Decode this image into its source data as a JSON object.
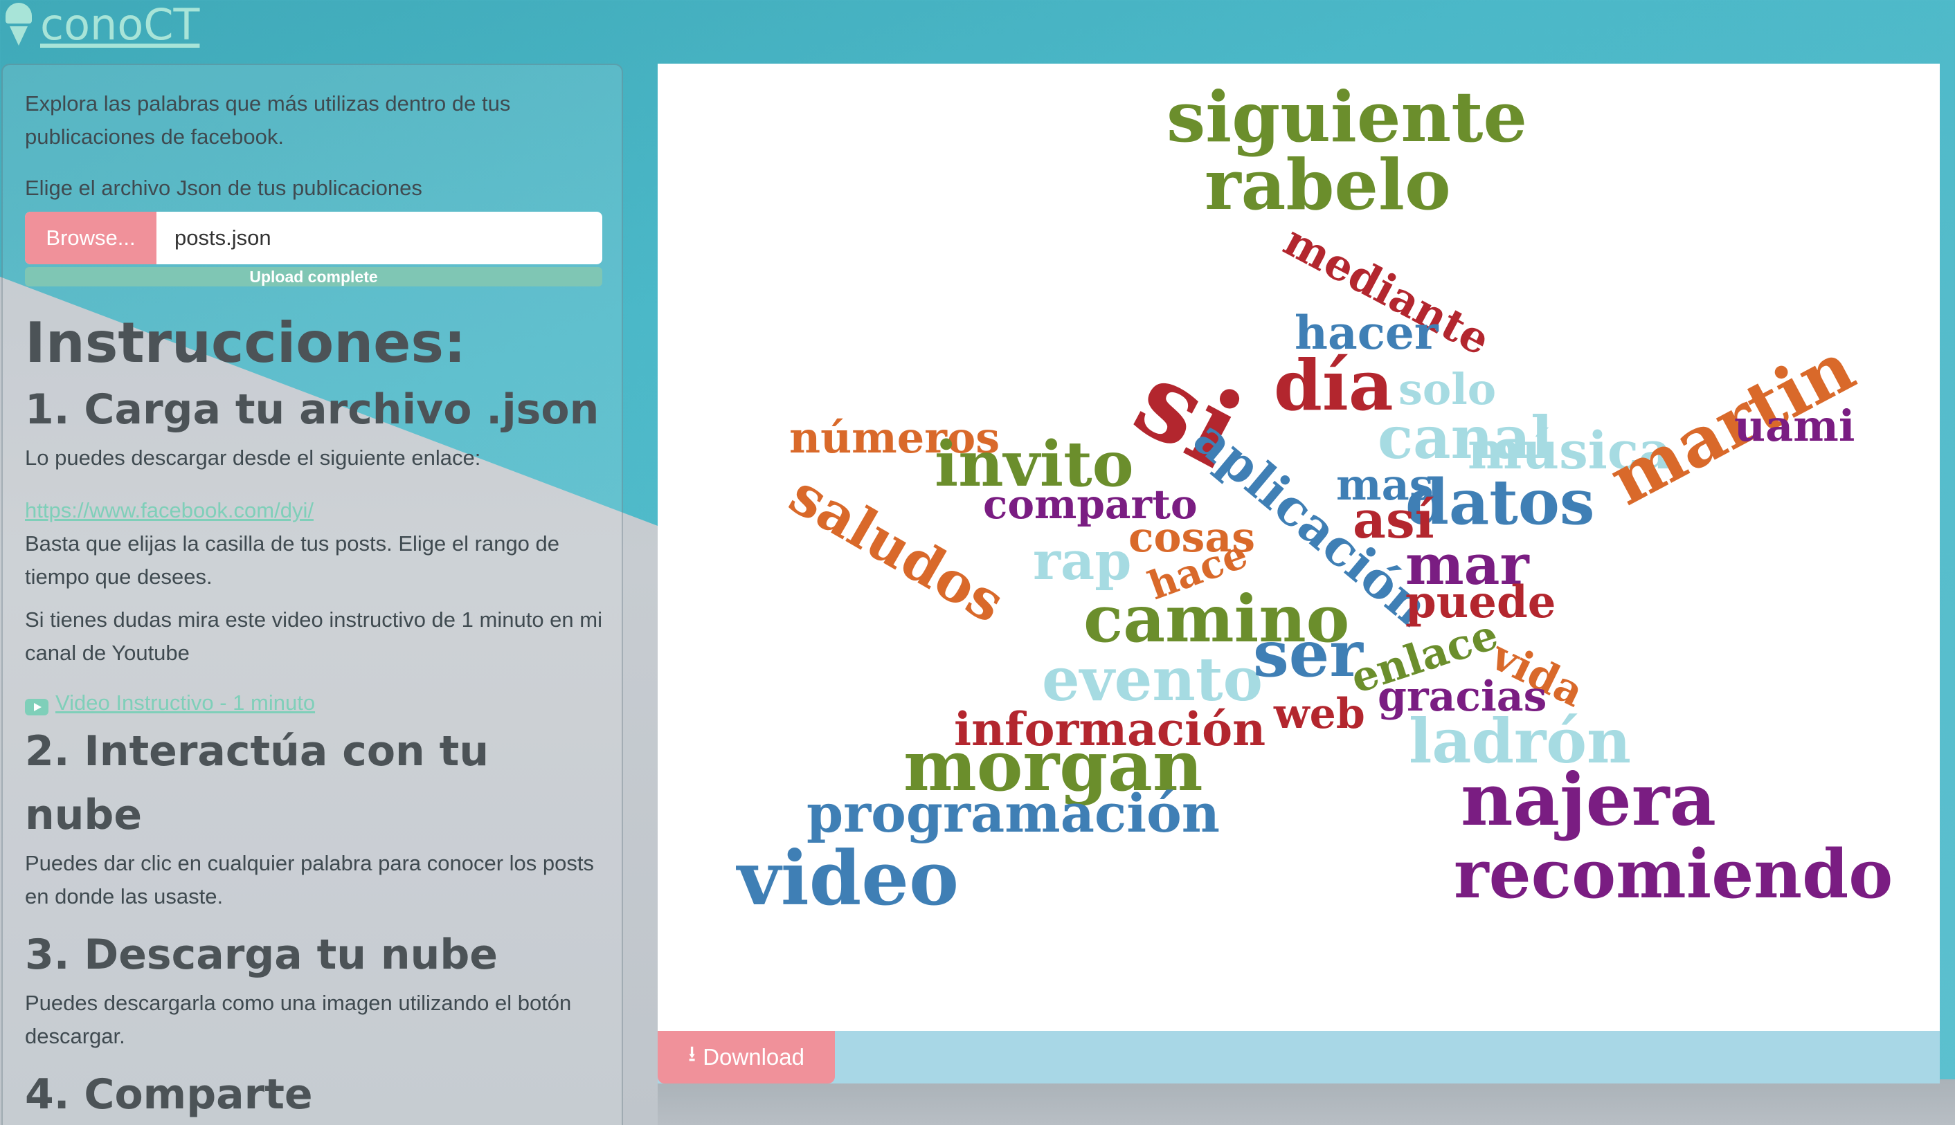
{
  "brand": {
    "title": "conoCT",
    "icon": "ice-cream-icon"
  },
  "sidebar": {
    "intro": "Explora las palabras que más utilizas dentro de tus publicaciones de facebook.",
    "file_label": "Elige el archivo Json de tus publicaciones",
    "browse_label": "Browse...",
    "file_name": "posts.json",
    "progress_label": "Upload complete",
    "progress_value": 1.0,
    "instructions_title": "Instrucciones:",
    "step1_title": "1. Carga tu archivo .json",
    "step1_text": "Lo puedes descargar desde el siguiente enlace:",
    "step1_link": "https://www.facebook.com/dyi/",
    "step1_text2": "Basta que elijas la casilla de tus posts. Elige el rango de tiempo que desees.",
    "step1_text3": "Si tienes dudas mira este video instructivo de 1 minuto en mi canal de Youtube",
    "video_link": "Video Instructivo - 1 minuto",
    "step2_title": "2. Interactúa con tu nube",
    "step2_text": "Puedes dar clic en cualquier palabra para conocer los posts en donde las usaste.",
    "step3_title": "3. Descarga tu nube",
    "step3_text": "Puedes descargarla como una imagen utilizando el botón descargar.",
    "step4_title": "4. Comparte"
  },
  "download": {
    "label": "Download",
    "icon": "download-icon"
  },
  "colors": {
    "green": "#6b8e2c",
    "darkred": "#b3262e",
    "blue": "#3f7fb5",
    "lightblue": "#a6dbe2",
    "orange": "#d9692a",
    "purple": "#7a1d82",
    "pink": "#f0919a",
    "teal": "#7fcfb9"
  },
  "cloud": {
    "words": [
      {
        "text": "siguiente",
        "color": "green"
      },
      {
        "text": "rabelo",
        "color": "green"
      },
      {
        "text": "mediante",
        "color": "darkred"
      },
      {
        "text": "hacer",
        "color": "blue"
      },
      {
        "text": "si",
        "color": "darkred"
      },
      {
        "text": "día",
        "color": "darkred"
      },
      {
        "text": "solo",
        "color": "lightblue"
      },
      {
        "text": "canal",
        "color": "lightblue"
      },
      {
        "text": "números",
        "color": "orange"
      },
      {
        "text": "invito",
        "color": "green"
      },
      {
        "text": "aplicación",
        "color": "blue"
      },
      {
        "text": "mas",
        "color": "blue"
      },
      {
        "text": "música",
        "color": "lightblue"
      },
      {
        "text": "martin",
        "color": "orange"
      },
      {
        "text": "uami",
        "color": "purple"
      },
      {
        "text": "comparto",
        "color": "purple"
      },
      {
        "text": "saludos",
        "color": "orange"
      },
      {
        "text": "datos",
        "color": "blue"
      },
      {
        "text": "así",
        "color": "darkred"
      },
      {
        "text": "rap",
        "color": "lightblue"
      },
      {
        "text": "cosas",
        "color": "orange"
      },
      {
        "text": "mar",
        "color": "purple"
      },
      {
        "text": "hace",
        "color": "orange"
      },
      {
        "text": "puede",
        "color": "darkred"
      },
      {
        "text": "camino",
        "color": "green"
      },
      {
        "text": "evento",
        "color": "lightblue"
      },
      {
        "text": "ser",
        "color": "blue"
      },
      {
        "text": "enlace",
        "color": "green"
      },
      {
        "text": "vida",
        "color": "orange"
      },
      {
        "text": "web",
        "color": "darkred"
      },
      {
        "text": "gracias",
        "color": "purple"
      },
      {
        "text": "información",
        "color": "darkred"
      },
      {
        "text": "ladrón",
        "color": "lightblue"
      },
      {
        "text": "morgan",
        "color": "green"
      },
      {
        "text": "programación",
        "color": "blue"
      },
      {
        "text": "najera",
        "color": "purple"
      },
      {
        "text": "video",
        "color": "blue"
      },
      {
        "text": "recomiendo",
        "color": "purple"
      }
    ]
  }
}
